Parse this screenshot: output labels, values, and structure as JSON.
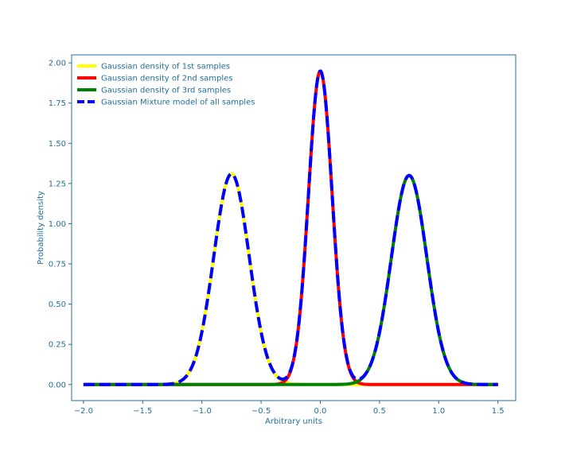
{
  "colors": {
    "axis": "#1f6f9f",
    "text": "#1f6f9f"
  },
  "chart_data": {
    "type": "line",
    "title": "",
    "xlabel": "Arbitrary units",
    "ylabel": "Probability density",
    "xlim": [
      -2.1,
      1.65
    ],
    "ylim": [
      -0.1,
      2.05
    ],
    "grid": false,
    "legend_position": "top-left",
    "xticks": [
      -2.0,
      -1.5,
      -1.0,
      -0.5,
      0.0,
      0.5,
      1.0,
      1.5
    ],
    "xtick_labels": [
      "−2.0",
      "−1.5",
      "−1.0",
      "−0.5",
      "0.0",
      "0.5",
      "1.0",
      "1.5"
    ],
    "yticks": [
      0.0,
      0.25,
      0.5,
      0.75,
      1.0,
      1.25,
      1.5,
      1.75,
      2.0
    ],
    "ytick_labels": [
      "0.00",
      "0.25",
      "0.50",
      "0.75",
      "1.00",
      "1.25",
      "1.50",
      "1.75",
      "2.00"
    ],
    "x_range": [
      -2.0,
      1.5
    ],
    "series": [
      {
        "name": "Gaussian density of 1st samples",
        "color": "#ffff00",
        "style": "solid",
        "mean": -0.75,
        "peak": 1.31,
        "sigma": 0.15
      },
      {
        "name": "Gaussian density of 2nd samples",
        "color": "#ff0000",
        "style": "solid",
        "mean": 0.0,
        "peak": 1.95,
        "sigma": 0.1
      },
      {
        "name": "Gaussian density of 3rd samples",
        "color": "#008000",
        "style": "solid",
        "mean": 0.75,
        "peak": 1.3,
        "sigma": 0.15
      },
      {
        "name": "Gaussian Mixture model of all samples",
        "color": "#0000ff",
        "style": "dashed"
      }
    ]
  }
}
